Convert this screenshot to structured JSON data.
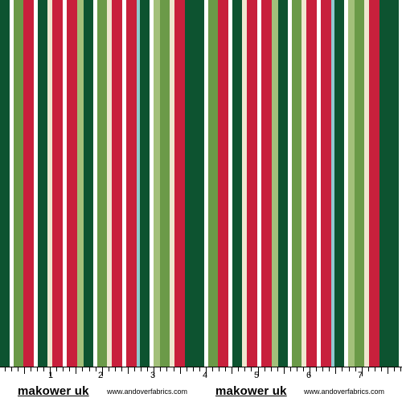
{
  "colors": {
    "red": "#c8203c",
    "darkgreen": "#0d5330",
    "green": "#6b9a48",
    "lightgreen": "#a3c07a",
    "cream": "#efe7cf",
    "aqua": "#8fc9cf",
    "white": "#ffffff"
  },
  "stripe_sequence": [
    "darkgreen",
    "white",
    "green",
    "red",
    "white",
    "darkgreen",
    "cream",
    "red",
    "white",
    "red",
    "lightgreen",
    "darkgreen",
    "white",
    "green",
    "cream",
    "red",
    "white",
    "red",
    "aqua",
    "darkgreen",
    "white",
    "lightgreen",
    "green",
    "cream",
    "red",
    "darkgreen"
  ],
  "ruler": {
    "numbers": [
      "1",
      "2",
      "3",
      "4",
      "5",
      "6",
      "7"
    ],
    "brand_left": "makower uk",
    "site_left": "www.andoverfabrics.com",
    "brand_right": "makower uk",
    "site_right": "www.andoverfabrics.com"
  }
}
